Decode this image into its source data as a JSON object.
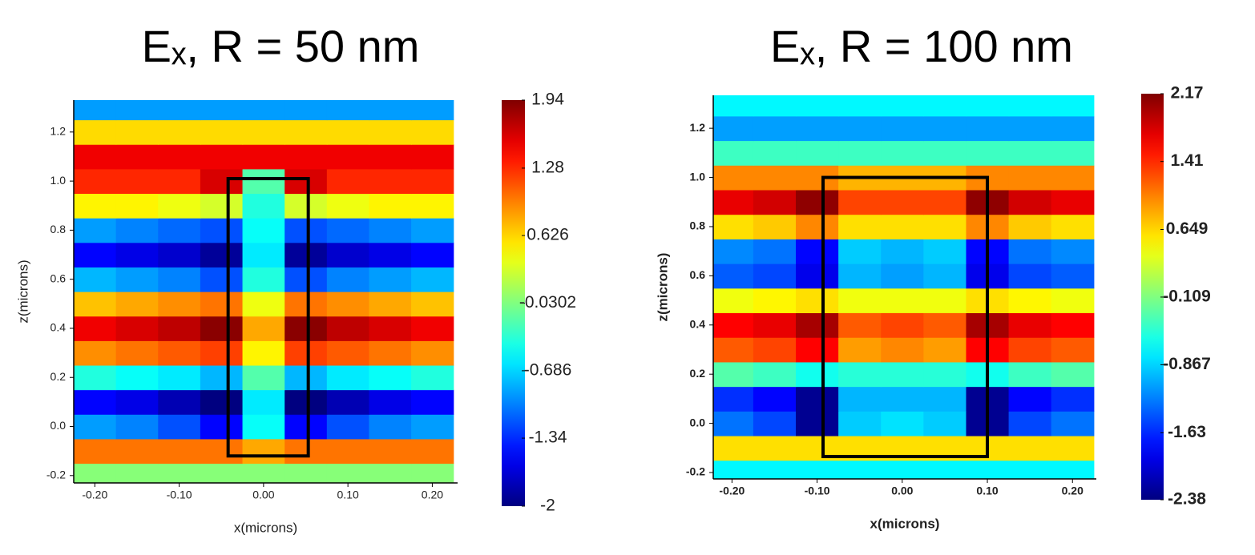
{
  "chart_data": [
    {
      "type": "heatmap",
      "title": "Eₓ, R = 50 nm",
      "xlabel": "x(microns)",
      "ylabel": "z(microns)",
      "colormap": "jet",
      "clim": [
        -2,
        1.94
      ],
      "cticks": [
        1.94,
        1.28,
        0.626,
        -0.0302,
        -0.686,
        -1.34,
        -2
      ],
      "xlim": [
        -0.225,
        0.23
      ],
      "ylim": [
        -0.23,
        1.33
      ],
      "xticks": [
        {
          "value": -0.2,
          "label": "-0.20"
        },
        {
          "value": -0.1,
          "label": "-0.10"
        },
        {
          "value": 0,
          "label": "0.00"
        },
        {
          "value": 0.1,
          "label": "0.10"
        },
        {
          "value": 0.2,
          "label": "0.20"
        }
      ],
      "yticks": [
        -0.2,
        {
          "value": 0,
          "label": "0.0"
        },
        0.2,
        0.4,
        0.6,
        0.8,
        {
          "value": 1,
          "label": "1.0"
        },
        1.2
      ],
      "box": {
        "x": [
          -0.042,
          0.053
        ],
        "y": [
          -0.12,
          1.01
        ]
      },
      "x": [
        -0.2,
        -0.15,
        -0.1,
        -0.05,
        0,
        0.05,
        0.1,
        0.15,
        0.2
      ],
      "y": [
        -0.2,
        -0.1,
        0,
        0.1,
        0.2,
        0.3,
        0.4,
        0.5,
        0.6,
        0.7,
        0.8,
        0.9,
        1.0,
        1.1,
        1.2,
        1.3
      ],
      "values": [
        [
          0,
          0,
          0,
          0,
          0,
          0,
          0,
          0,
          0
        ],
        [
          1.0,
          1.0,
          1.0,
          1.0,
          0.8,
          1.0,
          1.0,
          1.0,
          1.0
        ],
        [
          -0.9,
          -1.0,
          -1.2,
          -1.5,
          -0.5,
          -1.5,
          -1.2,
          -1.0,
          -0.9
        ],
        [
          -1.5,
          -1.6,
          -1.8,
          -2.0,
          -0.6,
          -2.0,
          -1.8,
          -1.6,
          -1.5
        ],
        [
          -0.4,
          -0.5,
          -0.6,
          -0.8,
          -0.2,
          -0.8,
          -0.6,
          -0.5,
          -0.4
        ],
        [
          0.9,
          1.0,
          1.1,
          1.2,
          0.5,
          1.2,
          1.1,
          1.0,
          0.9
        ],
        [
          1.5,
          1.6,
          1.7,
          1.9,
          0.8,
          1.9,
          1.7,
          1.6,
          1.5
        ],
        [
          0.7,
          0.8,
          0.9,
          1.0,
          0.4,
          1.0,
          0.9,
          0.8,
          0.7
        ],
        [
          -0.8,
          -0.9,
          -1.0,
          -1.2,
          -0.4,
          -1.2,
          -1.0,
          -0.9,
          -0.8
        ],
        [
          -1.5,
          -1.6,
          -1.7,
          -1.9,
          -0.6,
          -1.9,
          -1.7,
          -1.6,
          -1.5
        ],
        [
          -0.9,
          -1.0,
          -1.1,
          -1.2,
          -0.5,
          -1.2,
          -1.1,
          -1.0,
          -0.9
        ],
        [
          0.5,
          0.5,
          0.4,
          0.3,
          -0.4,
          0.3,
          0.4,
          0.5,
          0.5
        ],
        [
          1.3,
          1.3,
          1.3,
          1.6,
          -0.2,
          1.6,
          1.3,
          1.3,
          1.3
        ],
        [
          1.5,
          1.5,
          1.5,
          1.5,
          1.5,
          1.5,
          1.5,
          1.5,
          1.5
        ],
        [
          0.6,
          0.6,
          0.6,
          0.6,
          0.6,
          0.6,
          0.6,
          0.6,
          0.6
        ],
        [
          -0.9,
          -0.9,
          -0.9,
          -0.9,
          -0.9,
          -0.9,
          -0.9,
          -0.9,
          -0.9
        ]
      ]
    },
    {
      "type": "heatmap",
      "title": "Eₓ, R = 100 nm",
      "xlabel": "x(microns)",
      "ylabel": "z(microns)",
      "colormap": "jet",
      "clim": [
        -2.38,
        2.17
      ],
      "cticks": [
        2.17,
        1.41,
        0.649,
        -0.109,
        -0.867,
        -1.63,
        -2.38
      ],
      "xlim": [
        -0.222,
        0.228
      ],
      "ylim": [
        -0.226,
        1.334
      ],
      "xticks": [
        {
          "value": -0.2,
          "label": "-0.20"
        },
        {
          "value": -0.1,
          "label": "-0.10"
        },
        {
          "value": 0,
          "label": "0.00"
        },
        {
          "value": 0.1,
          "label": "0.10"
        },
        {
          "value": 0.2,
          "label": "0.20"
        }
      ],
      "yticks": [
        -0.2,
        {
          "value": 0,
          "label": "0.0"
        },
        0.2,
        0.4,
        0.6,
        0.8,
        {
          "value": 1,
          "label": "1.0"
        },
        1.2
      ],
      "box": {
        "x": [
          -0.093,
          0.1
        ],
        "y": [
          -0.135,
          1.0
        ]
      },
      "x": [
        -0.2,
        -0.15,
        -0.1,
        -0.05,
        0,
        0.05,
        0.1,
        0.15,
        0.2
      ],
      "y": [
        -0.2,
        -0.1,
        0,
        0.1,
        0.2,
        0.3,
        0.4,
        0.5,
        0.6,
        0.7,
        0.8,
        0.9,
        1.0,
        1.1,
        1.2,
        1.3
      ],
      "values": [
        [
          -0.7,
          -0.7,
          -0.7,
          -0.7,
          -0.7,
          -0.7,
          -0.7,
          -0.7,
          -0.7
        ],
        [
          0.6,
          0.6,
          0.6,
          0.6,
          0.6,
          0.6,
          0.6,
          0.6,
          0.6
        ],
        [
          -1.3,
          -1.5,
          -2.3,
          -0.9,
          -0.8,
          -0.9,
          -2.3,
          -1.5,
          -1.3
        ],
        [
          -1.6,
          -1.8,
          -2.3,
          -1.0,
          -1.0,
          -1.0,
          -2.3,
          -1.8,
          -1.6
        ],
        [
          -0.3,
          -0.4,
          -0.6,
          -0.5,
          -0.5,
          -0.5,
          -0.6,
          -0.4,
          -0.3
        ],
        [
          1.2,
          1.3,
          1.6,
          0.9,
          1.0,
          0.9,
          1.6,
          1.3,
          1.2
        ],
        [
          1.6,
          1.7,
          2.0,
          1.2,
          1.3,
          1.2,
          2.0,
          1.7,
          1.6
        ],
        [
          0.4,
          0.5,
          0.6,
          0.4,
          0.4,
          0.4,
          0.6,
          0.5,
          0.4
        ],
        [
          -1.4,
          -1.5,
          -1.9,
          -1.0,
          -1.1,
          -1.0,
          -1.9,
          -1.5,
          -1.4
        ],
        [
          -1.2,
          -1.3,
          -1.8,
          -0.9,
          -1.0,
          -0.9,
          -1.8,
          -1.3,
          -1.2
        ],
        [
          0.6,
          0.7,
          1.0,
          0.6,
          0.6,
          0.6,
          1.0,
          0.7,
          0.6
        ],
        [
          1.7,
          1.8,
          2.1,
          1.3,
          1.3,
          1.3,
          2.1,
          1.8,
          1.7
        ],
        [
          1.0,
          1.0,
          1.0,
          0.8,
          0.8,
          0.8,
          1.0,
          1.0,
          1.0
        ],
        [
          -0.4,
          -0.4,
          -0.4,
          -0.4,
          -0.4,
          -0.4,
          -0.4,
          -0.4,
          -0.4
        ],
        [
          -1.1,
          -1.1,
          -1.1,
          -1.1,
          -1.1,
          -1.1,
          -1.1,
          -1.1,
          -1.1
        ],
        [
          -0.7,
          -0.7,
          -0.7,
          -0.7,
          -0.7,
          -0.7,
          -0.7,
          -0.7,
          -0.7
        ]
      ]
    }
  ]
}
